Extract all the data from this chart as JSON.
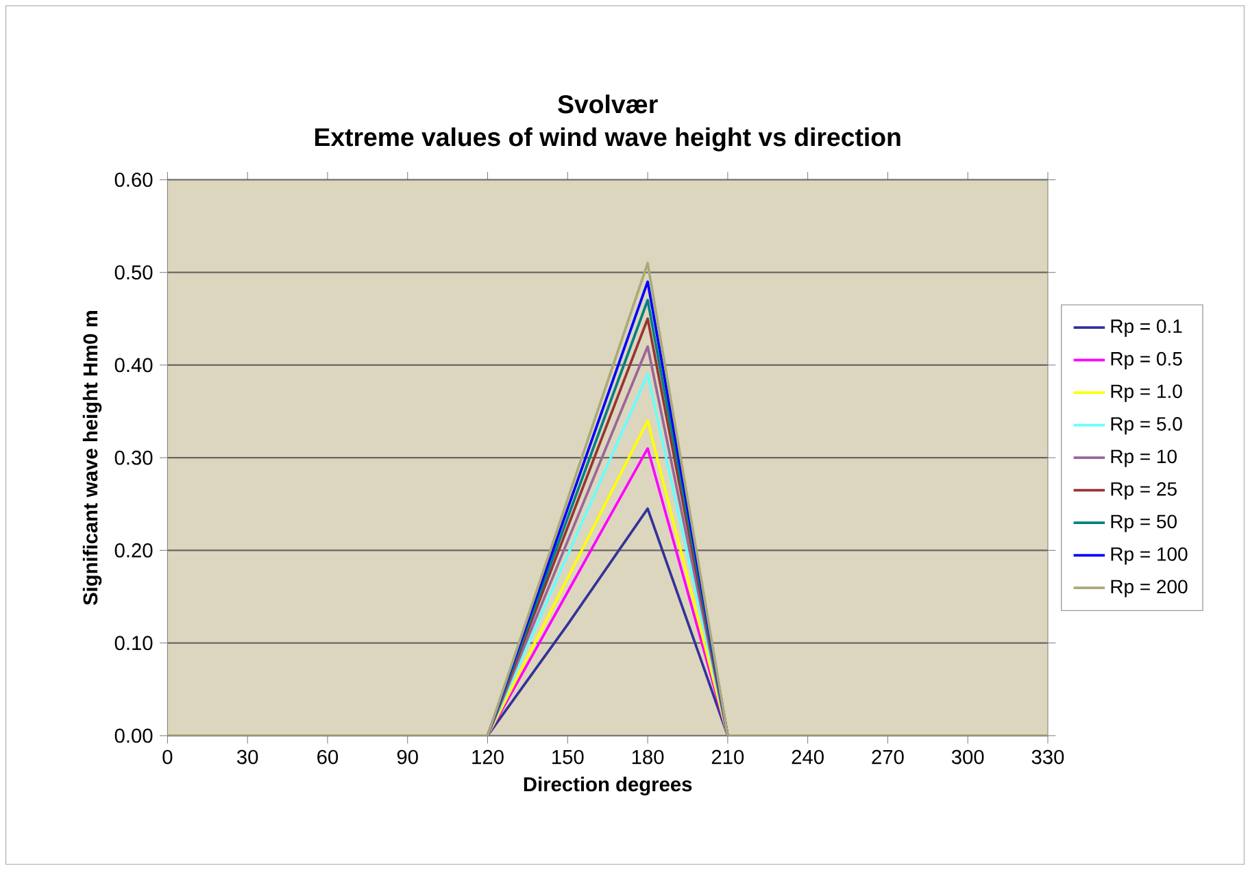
{
  "chart_data": {
    "type": "line",
    "title": "Svolvær",
    "subtitle": "Extreme values of wind wave height vs direction",
    "xlabel": "Direction degrees",
    "ylabel": "Significant wave height Hm0 m",
    "x": [
      0,
      30,
      60,
      90,
      120,
      150,
      180,
      210,
      240,
      270,
      300,
      330
    ],
    "xlim": [
      0,
      330
    ],
    "xticks": [
      0,
      30,
      60,
      90,
      120,
      150,
      180,
      210,
      240,
      270,
      300,
      330
    ],
    "ylim": [
      0,
      0.6
    ],
    "yticks": [
      {
        "value": 0,
        "label": "0.00"
      },
      {
        "value": 0.1,
        "label": "0.10"
      },
      {
        "value": 0.2,
        "label": "0.20"
      },
      {
        "value": 0.3,
        "label": "0.30"
      },
      {
        "value": 0.4,
        "label": "0.40"
      },
      {
        "value": 0.5,
        "label": "0.50"
      },
      {
        "value": 0.6,
        "label": "0.60"
      }
    ],
    "grid": "y",
    "legend": "right",
    "marker": "none",
    "line_style": "solid",
    "series": [
      {
        "name": "Rp = 0.1",
        "color": "#333399",
        "values": [
          null,
          null,
          null,
          null,
          0,
          0.12,
          0.245,
          0,
          null,
          null,
          null,
          null
        ]
      },
      {
        "name": "Rp = 0.5",
        "color": "#ff00ff",
        "values": [
          null,
          null,
          null,
          null,
          0,
          0.155,
          0.31,
          0,
          null,
          null,
          null,
          null
        ]
      },
      {
        "name": "Rp = 1.0",
        "color": "#ffff00",
        "values": [
          null,
          null,
          null,
          null,
          0,
          0.17,
          0.34,
          0,
          null,
          null,
          null,
          null
        ]
      },
      {
        "name": "Rp = 5.0",
        "color": "#66ffff",
        "values": [
          null,
          null,
          null,
          null,
          0,
          0.195,
          0.39,
          0,
          null,
          null,
          null,
          null
        ]
      },
      {
        "name": "Rp = 10",
        "color": "#996699",
        "values": [
          null,
          null,
          null,
          null,
          0,
          0.21,
          0.42,
          0,
          null,
          null,
          null,
          null
        ]
      },
      {
        "name": "Rp = 25",
        "color": "#993333",
        "values": [
          null,
          null,
          null,
          null,
          0,
          0.225,
          0.45,
          0,
          null,
          null,
          null,
          null
        ]
      },
      {
        "name": "Rp = 50",
        "color": "#008080",
        "values": [
          null,
          null,
          null,
          null,
          0,
          0.235,
          0.47,
          0,
          null,
          null,
          null,
          null
        ]
      },
      {
        "name": "Rp = 100",
        "color": "#0000ff",
        "values": [
          null,
          null,
          null,
          null,
          0,
          0.245,
          0.49,
          0,
          null,
          null,
          null,
          null
        ]
      },
      {
        "name": "Rp = 200",
        "color": "#aaaa77",
        "values": [
          0,
          0,
          0,
          0,
          0,
          0.255,
          0.51,
          0,
          0,
          0,
          0,
          0
        ]
      }
    ]
  }
}
